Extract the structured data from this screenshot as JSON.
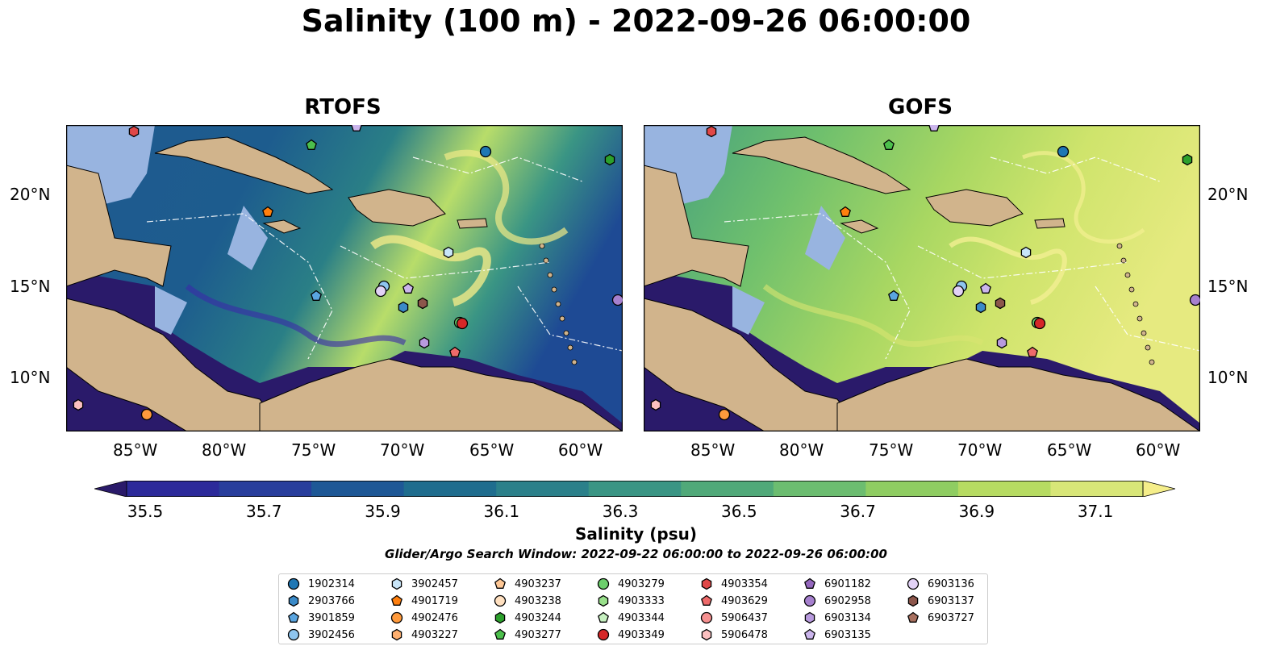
{
  "title": "Salinity (100 m) - 2022-09-26 06:00:00",
  "panels": [
    {
      "title": "RTOFS",
      "tint": "ocean-dark"
    },
    {
      "title": "GOFS",
      "tint": "ocean-light"
    }
  ],
  "lon_ticks": [
    "85°W",
    "80°W",
    "75°W",
    "70°W",
    "65°W",
    "60°W"
  ],
  "lat_ticks": [
    "20°N",
    "15°N",
    "10°N"
  ],
  "colorbar": {
    "labels": [
      "35.5",
      "35.7",
      "35.9",
      "36.1",
      "36.3",
      "36.5",
      "36.7",
      "36.9",
      "37.1"
    ],
    "title": "Salinity (psu)",
    "colors": [
      "#2a1a6a",
      "#2c2a9a",
      "#283e9c",
      "#1e5896",
      "#1f6d8e",
      "#2b808a",
      "#3a9584",
      "#50a979",
      "#6cbd70",
      "#8fcd62",
      "#b6db62",
      "#d8e678",
      "#f5ee8a"
    ]
  },
  "search_window": "Glider/Argo Search Window: 2022-09-22 06:00:00 to 2022-09-26 06:00:00",
  "legend": [
    {
      "id": "1902314",
      "color": "#1f77b4",
      "marker": "circle"
    },
    {
      "id": "2903766",
      "color": "#3a8ac8",
      "marker": "hexagon"
    },
    {
      "id": "3901859",
      "color": "#5aa5e0",
      "marker": "pentagon"
    },
    {
      "id": "3902456",
      "color": "#8ec5ef",
      "marker": "circle"
    },
    {
      "id": "3902457",
      "color": "#c8e5f8",
      "marker": "hexagon"
    },
    {
      "id": "4901719",
      "color": "#ff7f0e",
      "marker": "pentagon"
    },
    {
      "id": "4902476",
      "color": "#ff9a3c",
      "marker": "circle"
    },
    {
      "id": "4903227",
      "color": "#ffb070",
      "marker": "hexagon"
    },
    {
      "id": "4903237",
      "color": "#ffc896",
      "marker": "pentagon"
    },
    {
      "id": "4903238",
      "color": "#ffe0c0",
      "marker": "circle"
    },
    {
      "id": "4903244",
      "color": "#2ca02c",
      "marker": "hexagon"
    },
    {
      "id": "4903277",
      "color": "#4cbf4c",
      "marker": "pentagon"
    },
    {
      "id": "4903279",
      "color": "#6ccf6c",
      "marker": "circle"
    },
    {
      "id": "4903333",
      "color": "#98df8a",
      "marker": "hexagon"
    },
    {
      "id": "4903344",
      "color": "#c6f0c0",
      "marker": "pentagon"
    },
    {
      "id": "4903349",
      "color": "#d62728",
      "marker": "circle"
    },
    {
      "id": "4903354",
      "color": "#e04848",
      "marker": "hexagon"
    },
    {
      "id": "4903629",
      "color": "#ee6a6a",
      "marker": "pentagon"
    },
    {
      "id": "5906437",
      "color": "#f59090",
      "marker": "circle"
    },
    {
      "id": "5906478",
      "color": "#fbc0c0",
      "marker": "hexagon"
    },
    {
      "id": "6901182",
      "color": "#9467bd",
      "marker": "pentagon"
    },
    {
      "id": "6902958",
      "color": "#a680ce",
      "marker": "circle"
    },
    {
      "id": "6903134",
      "color": "#b89ade",
      "marker": "hexagon"
    },
    {
      "id": "6903135",
      "color": "#cbb5ec",
      "marker": "pentagon"
    },
    {
      "id": "6903136",
      "color": "#e2d2f6",
      "marker": "circle"
    },
    {
      "id": "6903137",
      "color": "#8c564b",
      "marker": "hexagon"
    },
    {
      "id": "6903727",
      "color": "#a8705f",
      "marker": "pentagon"
    }
  ]
}
